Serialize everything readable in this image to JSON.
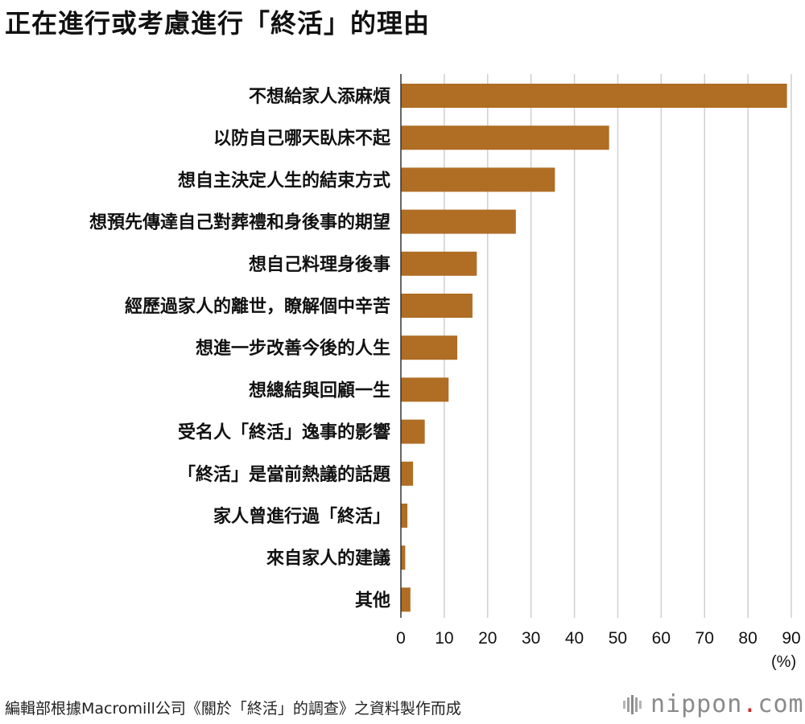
{
  "title": "正在進行或考慮進行「終活」的理由",
  "unit_label": "(%)",
  "source": "編輯部根據Macromill公司《關於「終活」的調查》之資料製作而成",
  "brand": {
    "name": "nippon",
    "dot": ".",
    "tld": "com",
    "icon": "nippon-logo-icon"
  },
  "colors": {
    "bar": "#b06d24",
    "grid": "#cfcfcf",
    "axis": "#333333"
  },
  "chart_data": {
    "type": "bar",
    "orientation": "horizontal",
    "title": "正在進行或考慮進行「終活」的理由",
    "xlabel": "(%)",
    "xlim": [
      0,
      90
    ],
    "xticks": [
      0,
      10,
      20,
      30,
      40,
      50,
      60,
      70,
      80,
      90
    ],
    "grid": true,
    "categories": [
      "不想給家人添麻煩",
      "以防自己哪天臥床不起",
      "想自主決定人生的結束方式",
      "想預先傳達自己對葬禮和身後事的期望",
      "想自己料理身後事",
      "經歷過家人的離世，瞭解個中辛苦",
      "想進一步改善今後的人生",
      "想總結與回顧一生",
      "受名人「終活」逸事的影響",
      "「終活」是當前熱議的話題",
      "家人曾進行過「終活」",
      "來自家人的建議",
      "其他"
    ],
    "values": [
      89,
      48,
      35.5,
      26.5,
      17.5,
      16.5,
      13,
      11,
      5.5,
      2.8,
      1.5,
      1,
      2.2
    ]
  }
}
